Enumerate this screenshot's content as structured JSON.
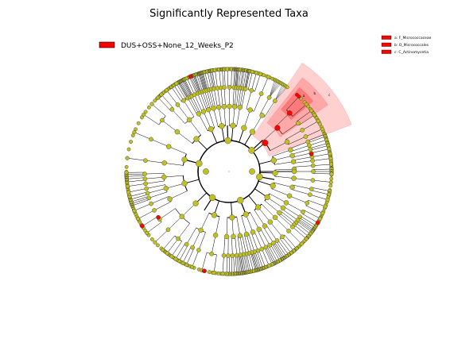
{
  "title": "Significantly Represented Taxa",
  "group_legend": {
    "label": "DUS+OSS+None_12_Weeks_P2",
    "color": "#ff0000"
  },
  "taxa_legend": [
    {
      "label": "a: F_Micrococcaceae",
      "color": "#ff0000"
    },
    {
      "label": "b: O_Micrococcales",
      "color": "#ff0000"
    },
    {
      "label": "c: C_Actinomycetia",
      "color": "#ff0000"
    }
  ],
  "clade_labels": [
    "a",
    "b",
    "c"
  ],
  "colors": {
    "node_default": "#c0c020",
    "node_significant": "#ff0000",
    "highlight_fill": "#ffaaaa",
    "edge": "#000000"
  }
}
